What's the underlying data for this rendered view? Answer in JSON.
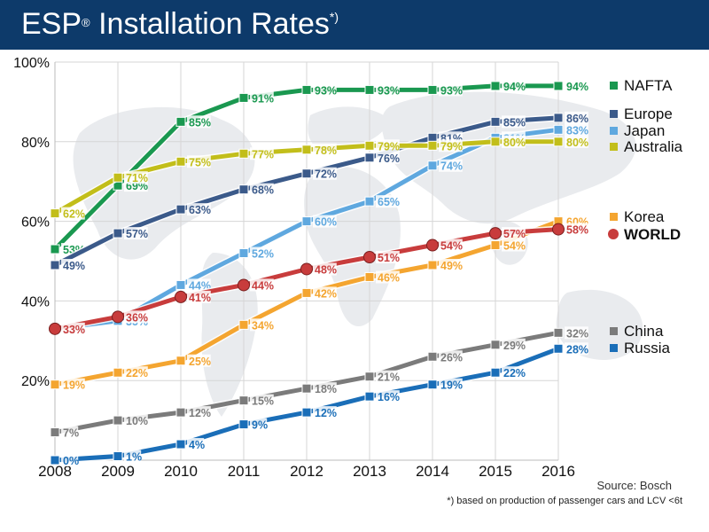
{
  "title": {
    "main": "ESP",
    "reg": "®",
    "rest": " Installation Rates",
    "note_marker": "*)"
  },
  "source": "Source: Bosch",
  "footnote": "*) based on production of passenger cars and LCV <6t",
  "chart_data": {
    "type": "line",
    "title": "ESP® Installation Rates*)",
    "x": [
      2008,
      2009,
      2010,
      2011,
      2012,
      2013,
      2014,
      2015,
      2016
    ],
    "y_ticks": [
      "20%",
      "40%",
      "60%",
      "80%",
      "100%"
    ],
    "y_tick_values": [
      20,
      40,
      60,
      80,
      100
    ],
    "ylim": [
      0,
      100
    ],
    "grid": true,
    "legend_position": "right",
    "series": [
      {
        "name": "NAFTA",
        "color": "#1a9850",
        "marker": "square",
        "values": [
          53,
          69,
          85,
          91,
          93,
          93,
          93,
          94,
          94
        ],
        "labels": [
          "53%",
          "69%",
          "85%",
          "91%",
          "93%",
          "93%",
          "93%",
          "94%",
          "94%"
        ]
      },
      {
        "name": "Europe",
        "color": "#3b5a8a",
        "marker": "square",
        "values": [
          49,
          57,
          63,
          68,
          72,
          76,
          81,
          85,
          86
        ],
        "labels": [
          "49%",
          "57%",
          "63%",
          "68%",
          "72%",
          "76%",
          "81%",
          "85%",
          "86%"
        ]
      },
      {
        "name": "Japan",
        "color": "#5fa8df",
        "marker": "square",
        "values": [
          33,
          35,
          44,
          52,
          60,
          65,
          74,
          81,
          83
        ],
        "labels": [
          "33%",
          "35%",
          "44%",
          "52%",
          "60%",
          "65%",
          "74%",
          "81%",
          "83%"
        ]
      },
      {
        "name": "Australia",
        "color": "#c2be1a",
        "marker": "square",
        "values": [
          62,
          71,
          75,
          77,
          78,
          79,
          79,
          80,
          80
        ],
        "labels": [
          "62%",
          "71%",
          "75%",
          "77%",
          "78%",
          "79%",
          "79%",
          "80%",
          "80%"
        ]
      },
      {
        "name": "Korea",
        "color": "#f4a530",
        "marker": "square",
        "values": [
          19,
          22,
          25,
          34,
          42,
          46,
          49,
          54,
          60
        ],
        "labels": [
          "19%",
          "22%",
          "25%",
          "34%",
          "42%",
          "46%",
          "49%",
          "54%",
          "60%"
        ]
      },
      {
        "name": "WORLD",
        "color": "#c83c3c",
        "marker": "circle",
        "bold": true,
        "values": [
          33,
          36,
          41,
          44,
          48,
          51,
          54,
          57,
          58
        ],
        "labels": [
          "33%",
          "36%",
          "41%",
          "44%",
          "48%",
          "51%",
          "54%",
          "57%",
          "58%"
        ]
      },
      {
        "name": "China",
        "color": "#7b7b7b",
        "marker": "square",
        "values": [
          7,
          10,
          12,
          15,
          18,
          21,
          26,
          29,
          32
        ],
        "labels": [
          "7%",
          "10%",
          "12%",
          "15%",
          "18%",
          "21%",
          "26%",
          "29%",
          "32%"
        ]
      },
      {
        "name": "Russia",
        "color": "#1a6eb8",
        "marker": "square",
        "values": [
          0,
          1,
          4,
          9,
          12,
          16,
          19,
          22,
          28
        ],
        "labels": [
          "0%",
          "1%",
          "4%",
          "9%",
          "12%",
          "16%",
          "19%",
          "22%",
          "28%"
        ]
      }
    ]
  }
}
